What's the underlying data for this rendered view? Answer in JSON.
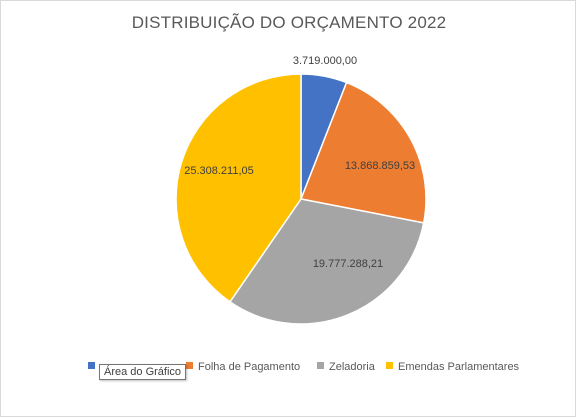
{
  "chart_data": {
    "type": "pie",
    "title": "DISTRIBUIÇÃO DO ORÇAMENTO 2022",
    "categories": [
      "",
      "Folha de Pagamento",
      "Zeladoria",
      "Emendas Parlamentares"
    ],
    "values": [
      3719000.0,
      13868859.53,
      19777288.21,
      25308211.05
    ],
    "data_labels": [
      "3.719.000,00",
      "13.868.859,53",
      "19.777.288,21",
      "25.308.211,05"
    ],
    "colors": [
      "#4472c4",
      "#ed7d31",
      "#a5a5a5",
      "#ffc000"
    ],
    "legend_position": "bottom"
  },
  "tooltip": {
    "text": "Área do Gráfico"
  }
}
